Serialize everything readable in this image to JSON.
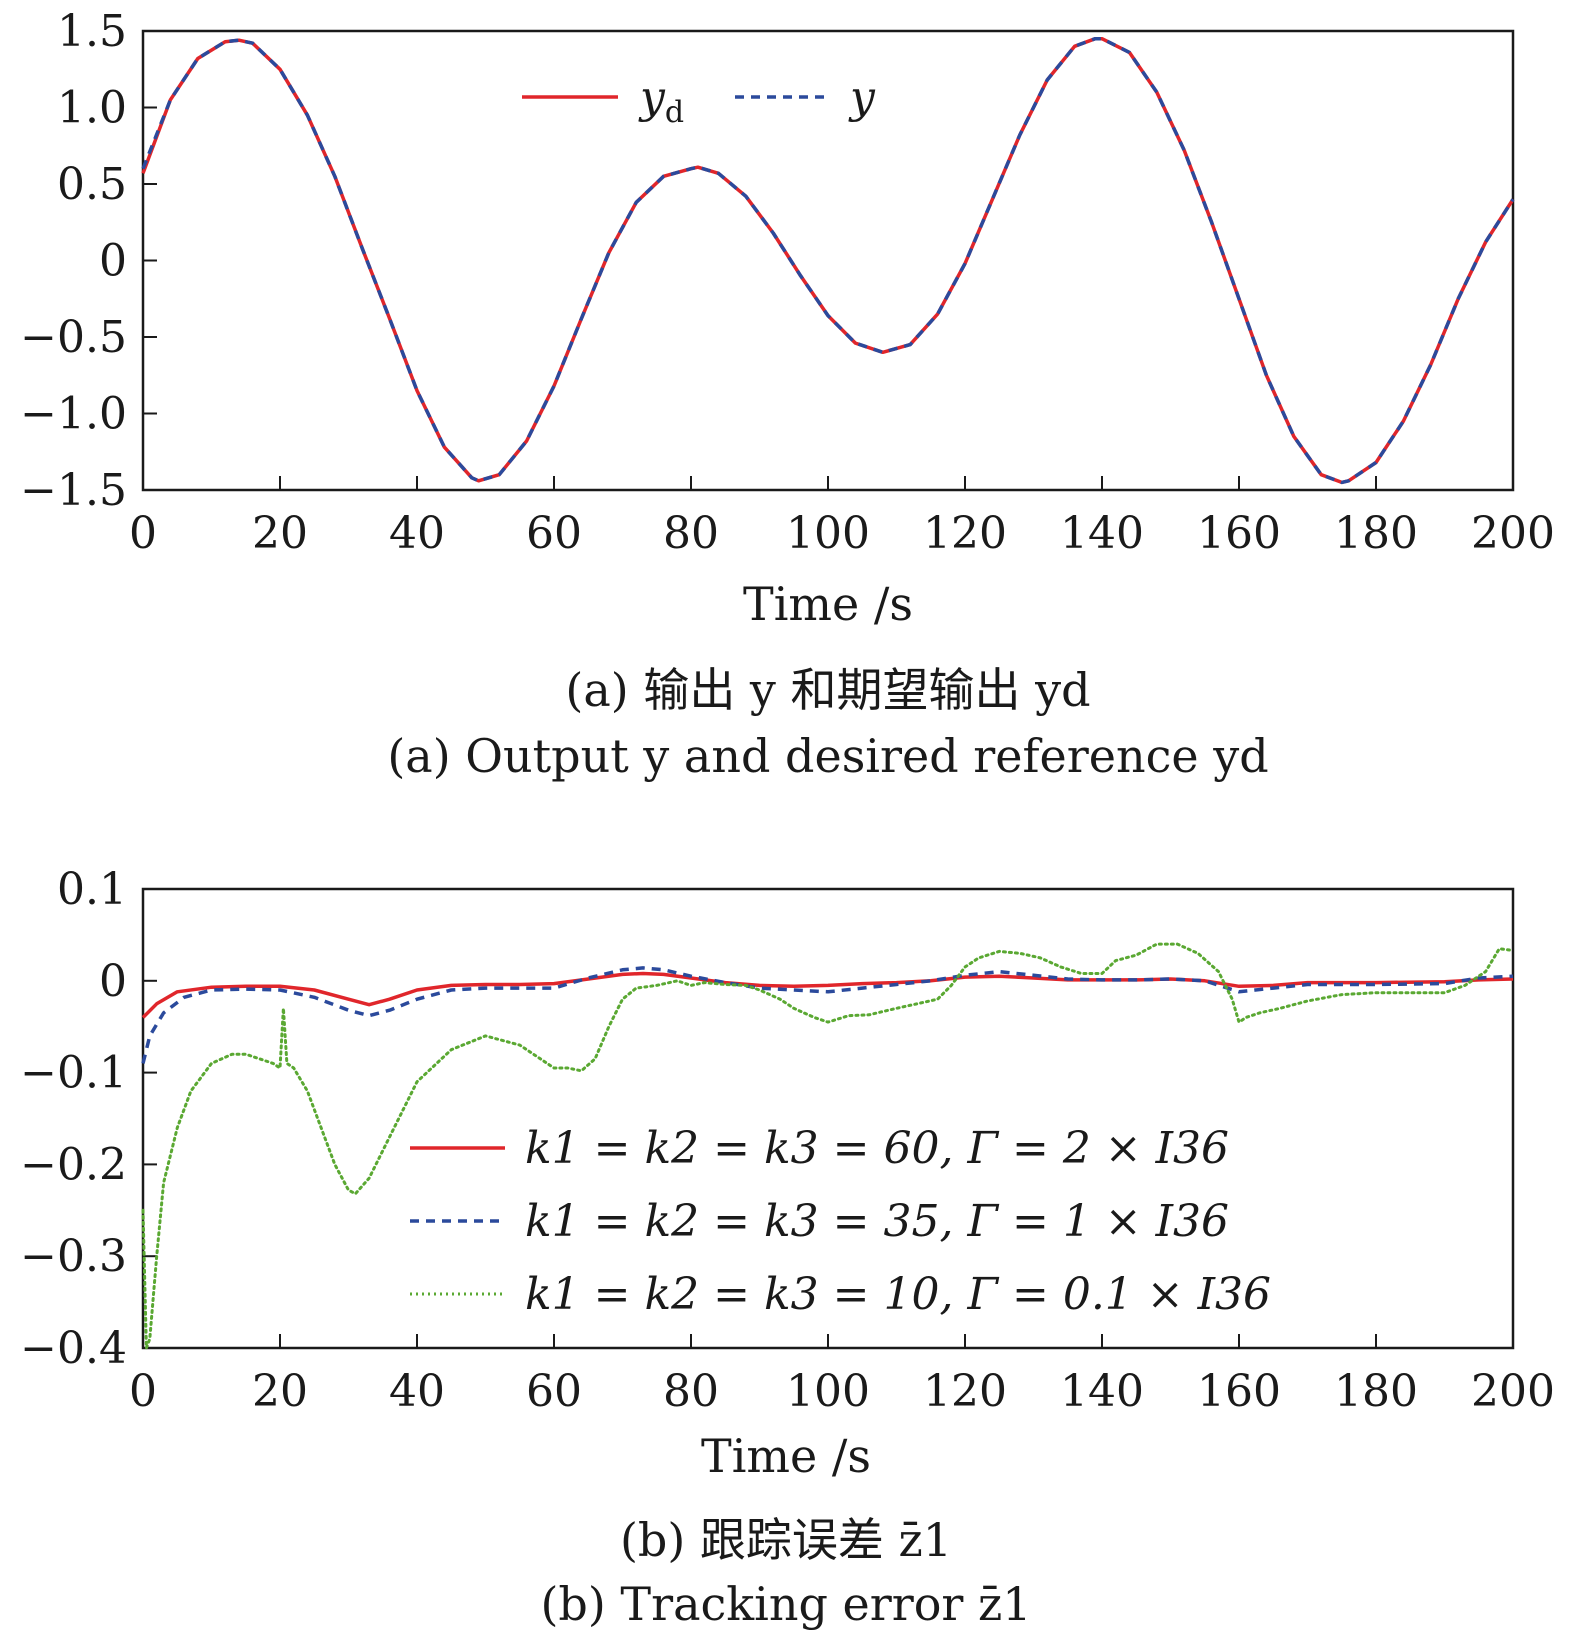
{
  "chart_data": [
    {
      "type": "line",
      "panel": "a",
      "xlabel": "Time /s",
      "ylabel": "",
      "xlim": [
        0,
        200
      ],
      "ylim": [
        -1.5,
        1.5
      ],
      "x_ticks": [
        "0",
        "20",
        "40",
        "60",
        "80",
        "100",
        "120",
        "140",
        "160",
        "180",
        "200"
      ],
      "y_ticks": [
        "1.5",
        "1.0",
        "0.5",
        "0",
        "−0.5",
        "−1.0",
        "−1.5"
      ],
      "legend_position": "top-center",
      "caption_cn": "(a) 输出 y 和期望输出 yd",
      "caption_en": "(a) Output y and desired reference yd",
      "series": [
        {
          "name": "yd",
          "color": "#e0262b",
          "style": "solid",
          "x": [
            0,
            4,
            8,
            12,
            14,
            16,
            20,
            24,
            28,
            32,
            36,
            40,
            44,
            48,
            49,
            52,
            56,
            60,
            64,
            68,
            72,
            76,
            80,
            81,
            84,
            88,
            92,
            96,
            100,
            104,
            108,
            112,
            116,
            120,
            124,
            128,
            132,
            136,
            139,
            140,
            144,
            148,
            152,
            156,
            160,
            164,
            168,
            172,
            175,
            176,
            180,
            184,
            188,
            192,
            196,
            200
          ],
          "y": [
            0.57,
            1.05,
            1.32,
            1.43,
            1.44,
            1.42,
            1.25,
            0.95,
            0.55,
            0.08,
            -0.38,
            -0.85,
            -1.22,
            -1.42,
            -1.44,
            -1.4,
            -1.18,
            -0.82,
            -0.38,
            0.05,
            0.38,
            0.55,
            0.6,
            0.61,
            0.57,
            0.42,
            0.18,
            -0.1,
            -0.36,
            -0.54,
            -0.6,
            -0.55,
            -0.35,
            -0.02,
            0.4,
            0.82,
            1.18,
            1.4,
            1.45,
            1.45,
            1.36,
            1.1,
            0.72,
            0.25,
            -0.25,
            -0.75,
            -1.15,
            -1.4,
            -1.45,
            -1.44,
            -1.32,
            -1.05,
            -0.68,
            -0.25,
            0.12,
            0.4
          ]
        },
        {
          "name": "y",
          "color": "#2b4a9c",
          "style": "dashed",
          "x": [
            0,
            4,
            8,
            12,
            14,
            16,
            20,
            24,
            28,
            32,
            36,
            40,
            44,
            48,
            49,
            52,
            56,
            60,
            64,
            68,
            72,
            76,
            80,
            81,
            84,
            88,
            92,
            96,
            100,
            104,
            108,
            112,
            116,
            120,
            124,
            128,
            132,
            136,
            139,
            140,
            144,
            148,
            152,
            156,
            160,
            164,
            168,
            172,
            175,
            176,
            180,
            184,
            188,
            192,
            196,
            200
          ],
          "y": [
            0.6,
            1.05,
            1.32,
            1.43,
            1.44,
            1.42,
            1.25,
            0.95,
            0.55,
            0.08,
            -0.38,
            -0.85,
            -1.22,
            -1.42,
            -1.44,
            -1.4,
            -1.18,
            -0.82,
            -0.38,
            0.05,
            0.38,
            0.55,
            0.6,
            0.61,
            0.57,
            0.42,
            0.18,
            -0.1,
            -0.36,
            -0.54,
            -0.6,
            -0.55,
            -0.35,
            -0.02,
            0.4,
            0.82,
            1.18,
            1.4,
            1.45,
            1.45,
            1.36,
            1.1,
            0.72,
            0.25,
            -0.25,
            -0.75,
            -1.15,
            -1.4,
            -1.45,
            -1.44,
            -1.32,
            -1.05,
            -0.68,
            -0.25,
            0.12,
            0.4
          ]
        }
      ]
    },
    {
      "type": "line",
      "panel": "b",
      "xlabel": "Time /s",
      "ylabel": "",
      "xlim": [
        0,
        200
      ],
      "ylim": [
        -0.4,
        0.1
      ],
      "x_ticks": [
        "0",
        "20",
        "40",
        "60",
        "80",
        "100",
        "120",
        "140",
        "160",
        "180",
        "200"
      ],
      "y_ticks": [
        "0.1",
        "0",
        "−0.1",
        "−0.2",
        "−0.3",
        "−0.4"
      ],
      "legend_position": "lower-center",
      "caption_cn": "(b) 跟踪误差 z̄1",
      "caption_en": "(b) Tracking error z̄1",
      "series": [
        {
          "name": "k1 = k2 = k3 = 60, Γ = 2 × I36",
          "color": "#e0262b",
          "style": "solid",
          "x": [
            0,
            2,
            5,
            10,
            15,
            20,
            25,
            30,
            33,
            36,
            40,
            45,
            50,
            55,
            60,
            65,
            70,
            73,
            76,
            80,
            85,
            90,
            95,
            100,
            105,
            110,
            115,
            120,
            125,
            130,
            135,
            140,
            145,
            150,
            155,
            160,
            165,
            170,
            180,
            190,
            195,
            200
          ],
          "y": [
            -0.04,
            -0.025,
            -0.012,
            -0.007,
            -0.006,
            -0.006,
            -0.01,
            -0.02,
            -0.026,
            -0.02,
            -0.01,
            -0.005,
            -0.004,
            -0.004,
            -0.003,
            0.002,
            0.007,
            0.008,
            0.007,
            0.003,
            -0.002,
            -0.005,
            -0.006,
            -0.005,
            -0.003,
            -0.002,
            0.0,
            0.004,
            0.005,
            0.003,
            0.001,
            0.001,
            0.001,
            0.002,
            0.0,
            -0.006,
            -0.005,
            -0.002,
            -0.002,
            -0.001,
            0.001,
            0.002
          ]
        },
        {
          "name": "k1 = k2 = k3 = 35, Γ = 1 × I36",
          "color": "#2b4a9c",
          "style": "dashed",
          "x": [
            0,
            1,
            3,
            6,
            10,
            15,
            20,
            25,
            30,
            33,
            36,
            40,
            45,
            50,
            55,
            60,
            65,
            70,
            73,
            76,
            80,
            85,
            90,
            95,
            100,
            105,
            110,
            115,
            120,
            125,
            130,
            135,
            140,
            145,
            150,
            155,
            160,
            165,
            170,
            180,
            190,
            195,
            200
          ],
          "y": [
            -0.09,
            -0.06,
            -0.035,
            -0.018,
            -0.01,
            -0.009,
            -0.01,
            -0.018,
            -0.032,
            -0.038,
            -0.032,
            -0.02,
            -0.01,
            -0.008,
            -0.008,
            -0.008,
            0.003,
            0.012,
            0.014,
            0.012,
            0.005,
            -0.002,
            -0.008,
            -0.01,
            -0.012,
            -0.008,
            -0.004,
            0.0,
            0.006,
            0.01,
            0.006,
            0.002,
            0.001,
            0.001,
            0.002,
            0.0,
            -0.012,
            -0.008,
            -0.004,
            -0.004,
            -0.003,
            0.003,
            0.005
          ]
        },
        {
          "name": "k1 = k2 = k3 = 10, Γ = 0.1 × I36",
          "color": "#5aa832",
          "style": "dotted",
          "x": [
            0,
            0.5,
            1,
            2,
            3,
            5,
            7,
            10,
            13,
            15,
            17,
            19,
            20,
            20.5,
            21,
            22,
            24,
            26,
            28,
            30,
            31,
            33,
            36,
            40,
            45,
            50,
            55,
            58,
            60,
            62,
            64,
            66,
            68,
            70,
            72,
            75,
            78,
            80,
            82,
            85,
            88,
            90,
            93,
            95,
            98,
            100,
            103,
            106,
            110,
            113,
            116,
            118,
            120,
            122,
            125,
            128,
            131,
            134,
            137,
            140,
            142,
            145,
            148,
            151,
            154,
            157,
            159,
            160,
            161,
            163,
            166,
            170,
            175,
            180,
            185,
            190,
            193,
            196,
            198,
            200
          ],
          "y": [
            -0.25,
            -0.4,
            -0.39,
            -0.3,
            -0.22,
            -0.16,
            -0.12,
            -0.09,
            -0.08,
            -0.08,
            -0.085,
            -0.09,
            -0.095,
            -0.03,
            -0.09,
            -0.095,
            -0.12,
            -0.16,
            -0.2,
            -0.228,
            -0.232,
            -0.215,
            -0.17,
            -0.11,
            -0.075,
            -0.06,
            -0.07,
            -0.085,
            -0.095,
            -0.095,
            -0.098,
            -0.085,
            -0.05,
            -0.02,
            -0.008,
            -0.005,
            0.0,
            -0.005,
            -0.002,
            -0.004,
            -0.005,
            -0.01,
            -0.02,
            -0.03,
            -0.04,
            -0.045,
            -0.038,
            -0.037,
            -0.03,
            -0.025,
            -0.02,
            -0.005,
            0.015,
            0.025,
            0.032,
            0.03,
            0.025,
            0.015,
            0.008,
            0.008,
            0.022,
            0.028,
            0.04,
            0.04,
            0.03,
            0.01,
            -0.02,
            -0.045,
            -0.04,
            -0.035,
            -0.03,
            -0.022,
            -0.015,
            -0.013,
            -0.013,
            -0.013,
            -0.005,
            0.01,
            0.035,
            0.033
          ]
        }
      ]
    }
  ]
}
